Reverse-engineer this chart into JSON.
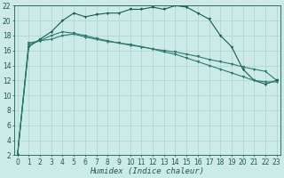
{
  "xlabel": "Humidex (Indice chaleur)",
  "x": [
    0,
    1,
    2,
    3,
    4,
    5,
    6,
    7,
    8,
    9,
    10,
    11,
    12,
    13,
    14,
    15,
    16,
    17,
    18,
    19,
    20,
    21,
    22,
    23
  ],
  "line1": [
    2,
    17,
    17.3,
    17.5,
    18.0,
    18.2,
    17.8,
    17.5,
    17.2,
    17.0,
    16.7,
    16.5,
    16.2,
    16.0,
    15.8,
    15.5,
    15.2,
    14.8,
    14.5,
    14.2,
    13.8,
    13.5,
    13.2,
    12.0
  ],
  "line2": [
    2,
    16.5,
    17.5,
    18.5,
    20.0,
    21.0,
    20.5,
    20.8,
    21.0,
    21.0,
    21.5,
    21.5,
    21.8,
    21.5,
    22.0,
    21.8,
    21.0,
    20.2,
    18.0,
    16.5,
    13.5,
    12.0,
    11.5,
    12.0
  ],
  "line3": [
    2,
    16.8,
    17.3,
    18.0,
    18.5,
    18.3,
    18.0,
    17.6,
    17.3,
    17.0,
    16.8,
    16.5,
    16.2,
    15.8,
    15.5,
    15.0,
    14.5,
    14.0,
    13.5,
    13.0,
    12.5,
    12.0,
    11.8,
    11.8
  ],
  "line_color1": "#2d7a6e",
  "line_color2": "#1a5c50",
  "bg_color": "#cceae7",
  "grid_color": "#aad4d0",
  "ylim_min": 2,
  "ylim_max": 22,
  "xlim_min": 0,
  "xlim_max": 23,
  "yticks": [
    2,
    4,
    6,
    8,
    10,
    12,
    14,
    16,
    18,
    20,
    22
  ],
  "xticks": [
    0,
    1,
    2,
    3,
    4,
    5,
    6,
    7,
    8,
    9,
    10,
    11,
    12,
    13,
    14,
    15,
    16,
    17,
    18,
    19,
    20,
    21,
    22,
    23
  ],
  "tick_fontsize": 5.5,
  "xlabel_fontsize": 6.5
}
